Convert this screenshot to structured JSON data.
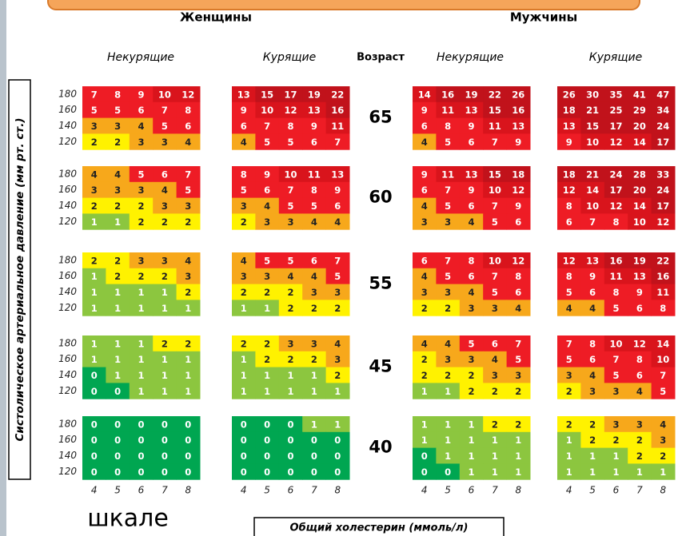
{
  "headers": {
    "women": "Женщины",
    "men": "Мужчины",
    "age": "Возраст"
  },
  "y_axis_label": "Систолическое артериальное давление (мм рт. ст.)",
  "x_axis_label": "Общий холестерин (ммоль/л)",
  "footer_text": "шкале",
  "ages": [
    65,
    60,
    55,
    45,
    40
  ],
  "pressures": [
    180,
    160,
    140,
    120
  ],
  "cholesterol": [
    4,
    5,
    6,
    7,
    8
  ],
  "panels": [
    {
      "label": "Некурящие",
      "risk": [
        [
          [
            7,
            8,
            9,
            10,
            12
          ],
          [
            5,
            5,
            6,
            7,
            8
          ],
          [
            3,
            3,
            4,
            5,
            6
          ],
          [
            2,
            2,
            3,
            3,
            4
          ]
        ],
        [
          [
            4,
            4,
            5,
            6,
            7
          ],
          [
            3,
            3,
            3,
            4,
            5
          ],
          [
            2,
            2,
            2,
            3,
            3
          ],
          [
            1,
            1,
            2,
            2,
            2
          ]
        ],
        [
          [
            2,
            2,
            3,
            3,
            4
          ],
          [
            1,
            2,
            2,
            2,
            3
          ],
          [
            1,
            1,
            1,
            1,
            2
          ],
          [
            1,
            1,
            1,
            1,
            1
          ]
        ],
        [
          [
            1,
            1,
            1,
            2,
            2
          ],
          [
            1,
            1,
            1,
            1,
            1
          ],
          [
            0,
            1,
            1,
            1,
            1
          ],
          [
            0,
            0,
            1,
            1,
            1
          ]
        ],
        [
          [
            0,
            0,
            0,
            0,
            0
          ],
          [
            0,
            0,
            0,
            0,
            0
          ],
          [
            0,
            0,
            0,
            0,
            0
          ],
          [
            0,
            0,
            0,
            0,
            0
          ]
        ]
      ]
    },
    {
      "label": "Курящие",
      "risk": [
        [
          [
            13,
            15,
            17,
            19,
            22
          ],
          [
            9,
            10,
            12,
            13,
            16
          ],
          [
            6,
            7,
            8,
            9,
            11
          ],
          [
            4,
            5,
            5,
            6,
            7
          ]
        ],
        [
          [
            8,
            9,
            10,
            11,
            13
          ],
          [
            5,
            6,
            7,
            8,
            9
          ],
          [
            3,
            4,
            5,
            5,
            6
          ],
          [
            2,
            3,
            3,
            4,
            4
          ]
        ],
        [
          [
            4,
            5,
            5,
            6,
            7
          ],
          [
            3,
            3,
            4,
            4,
            5
          ],
          [
            2,
            2,
            2,
            3,
            3
          ],
          [
            1,
            1,
            2,
            2,
            2
          ]
        ],
        [
          [
            2,
            2,
            3,
            3,
            4
          ],
          [
            1,
            2,
            2,
            2,
            3
          ],
          [
            1,
            1,
            1,
            1,
            2
          ],
          [
            1,
            1,
            1,
            1,
            1
          ]
        ],
        [
          [
            0,
            0,
            0,
            1,
            1
          ],
          [
            0,
            0,
            0,
            0,
            0
          ],
          [
            0,
            0,
            0,
            0,
            0
          ],
          [
            0,
            0,
            0,
            0,
            0
          ]
        ]
      ]
    },
    {
      "label": "Некурящие",
      "risk": [
        [
          [
            14,
            16,
            19,
            22,
            26
          ],
          [
            9,
            11,
            13,
            15,
            16
          ],
          [
            6,
            8,
            9,
            11,
            13
          ],
          [
            4,
            5,
            6,
            7,
            9
          ]
        ],
        [
          [
            9,
            11,
            13,
            15,
            18
          ],
          [
            6,
            7,
            9,
            10,
            12
          ],
          [
            4,
            5,
            6,
            7,
            9
          ],
          [
            3,
            3,
            4,
            5,
            6
          ]
        ],
        [
          [
            6,
            7,
            8,
            10,
            12
          ],
          [
            4,
            5,
            6,
            7,
            8
          ],
          [
            3,
            3,
            4,
            5,
            6
          ],
          [
            2,
            2,
            3,
            3,
            4
          ]
        ],
        [
          [
            4,
            4,
            5,
            6,
            7
          ],
          [
            2,
            3,
            3,
            4,
            5
          ],
          [
            2,
            2,
            2,
            3,
            3
          ],
          [
            1,
            1,
            2,
            2,
            2
          ]
        ],
        [
          [
            1,
            1,
            1,
            2,
            2
          ],
          [
            1,
            1,
            1,
            1,
            1
          ],
          [
            0,
            1,
            1,
            1,
            1
          ],
          [
            0,
            0,
            1,
            1,
            1
          ]
        ]
      ]
    },
    {
      "label": "Курящие",
      "risk": [
        [
          [
            26,
            30,
            35,
            41,
            47
          ],
          [
            18,
            21,
            25,
            29,
            34
          ],
          [
            13,
            15,
            17,
            20,
            24
          ],
          [
            9,
            10,
            12,
            14,
            17
          ]
        ],
        [
          [
            18,
            21,
            24,
            28,
            33
          ],
          [
            12,
            14,
            17,
            20,
            24
          ],
          [
            8,
            10,
            12,
            14,
            17
          ],
          [
            6,
            7,
            8,
            10,
            12
          ]
        ],
        [
          [
            12,
            13,
            16,
            19,
            22
          ],
          [
            8,
            9,
            11,
            13,
            16
          ],
          [
            5,
            6,
            8,
            9,
            11
          ],
          [
            4,
            4,
            5,
            6,
            8
          ]
        ],
        [
          [
            7,
            8,
            10,
            12,
            14
          ],
          [
            5,
            6,
            7,
            8,
            10
          ],
          [
            3,
            4,
            5,
            6,
            7
          ],
          [
            2,
            3,
            3,
            4,
            5
          ]
        ],
        [
          [
            2,
            2,
            3,
            3,
            4
          ],
          [
            1,
            2,
            2,
            2,
            3
          ],
          [
            1,
            1,
            1,
            2,
            2
          ],
          [
            1,
            1,
            1,
            1,
            1
          ]
        ]
      ]
    }
  ]
}
